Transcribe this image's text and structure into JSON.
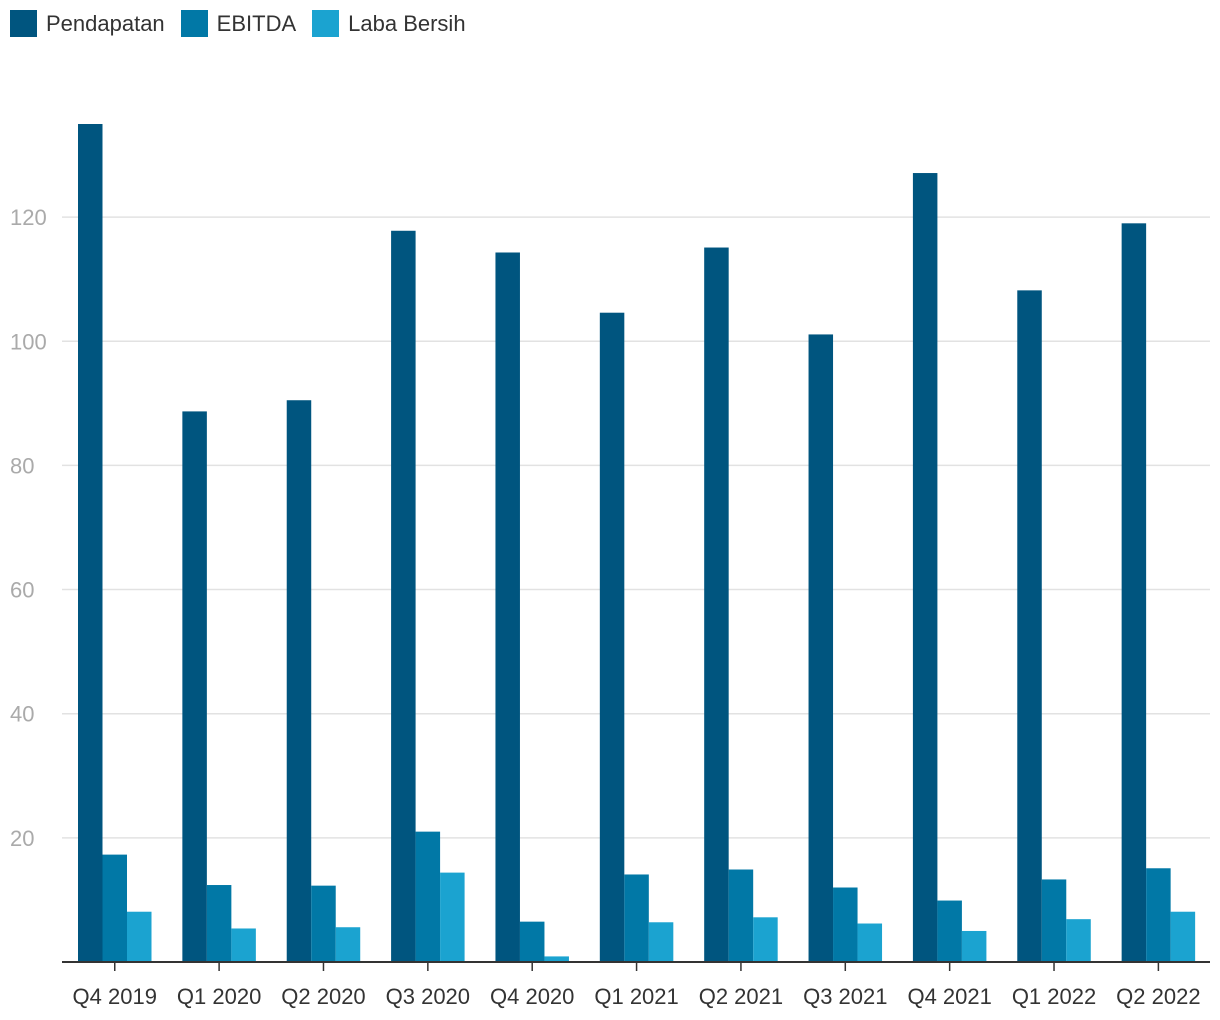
{
  "chart_data": {
    "type": "bar",
    "title": "",
    "xlabel": "",
    "ylabel": "",
    "ylim": [
      0,
      135
    ],
    "yticks": [
      20,
      40,
      60,
      80,
      100,
      120
    ],
    "grid": true,
    "legend_position": "top-left",
    "categories": [
      "Q4 2019",
      "Q1 2020",
      "Q2 2020",
      "Q3 2020",
      "Q4 2020",
      "Q1 2021",
      "Q2 2021",
      "Q3 2021",
      "Q4 2021",
      "Q1 2022",
      "Q2 2022"
    ],
    "series": [
      {
        "name": "Pendapatan",
        "color": "#00557f",
        "values": [
          135,
          88.7,
          90.5,
          117.8,
          114.3,
          104.6,
          115.1,
          101.1,
          127.1,
          108.2,
          119.0
        ]
      },
      {
        "name": "EBITDA",
        "color": "#0178a6",
        "values": [
          17.3,
          12.4,
          12.3,
          21.0,
          6.5,
          14.1,
          14.9,
          12.0,
          9.9,
          13.3,
          15.1
        ]
      },
      {
        "name": "Laba Bersih",
        "color": "#1ba3d0",
        "values": [
          8.1,
          5.4,
          5.6,
          14.4,
          0.9,
          6.4,
          7.2,
          6.2,
          5.0,
          6.9,
          8.1
        ]
      }
    ]
  }
}
